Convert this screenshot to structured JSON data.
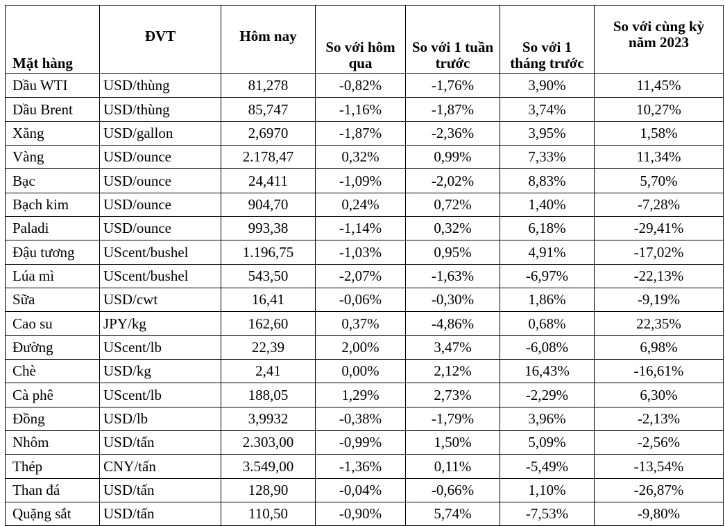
{
  "table": {
    "headers": {
      "item": "Mặt hàng",
      "unit": "ĐVT",
      "today": "Hôm nay",
      "vs_yesterday": "So với hôm qua",
      "vs_week": "So với 1 tuần trước",
      "vs_month": "So với 1 tháng trước",
      "vs_yoy": "So với cùng kỳ năm 2023"
    },
    "rows": [
      {
        "item": "Dầu WTI",
        "unit": "USD/thùng",
        "today": "81,278",
        "d1": "-0,82%",
        "w1": "-1,76%",
        "m1": "3,90%",
        "y1": "11,45%"
      },
      {
        "item": "Dầu Brent",
        "unit": "USD/thùng",
        "today": "85,747",
        "d1": "-1,16%",
        "w1": "-1,87%",
        "m1": "3,74%",
        "y1": "10,27%"
      },
      {
        "item": "Xăng",
        "unit": "USD/gallon",
        "today": "2,6970",
        "d1": "-1,87%",
        "w1": "-2,36%",
        "m1": "3,95%",
        "y1": "1,58%"
      },
      {
        "item": "Vàng",
        "unit": "USD/ounce",
        "today": "2.178,47",
        "d1": "0,32%",
        "w1": "0,99%",
        "m1": "7,33%",
        "y1": "11,34%"
      },
      {
        "item": "Bạc",
        "unit": "USD/ounce",
        "today": "24,411",
        "d1": "-1,09%",
        "w1": "-2,02%",
        "m1": "8,83%",
        "y1": "5,70%"
      },
      {
        "item": "Bạch kim",
        "unit": "USD/ounce",
        "today": "904,70",
        "d1": "0,24%",
        "w1": "0,72%",
        "m1": "1,40%",
        "y1": "-7,28%"
      },
      {
        "item": "Paladi",
        "unit": "USD/ounce",
        "today": "993,38",
        "d1": "-1,14%",
        "w1": "0,32%",
        "m1": "6,18%",
        "y1": "-29,41%"
      },
      {
        "item": "Đậu tương",
        "unit": "UScent/bushel",
        "today": "1.196,75",
        "d1": "-1,03%",
        "w1": "0,95%",
        "m1": "4,91%",
        "y1": "-17,02%"
      },
      {
        "item": "Lúa mì",
        "unit": "UScent/bushel",
        "today": "543,50",
        "d1": "-2,07%",
        "w1": "-1,63%",
        "m1": "-6,97%",
        "y1": "-22,13%"
      },
      {
        "item": "Sữa",
        "unit": "USD/cwt",
        "today": "16,41",
        "d1": "-0,06%",
        "w1": "-0,30%",
        "m1": "1,86%",
        "y1": "-9,19%"
      },
      {
        "item": "Cao su",
        "unit": "JPY/kg",
        "today": "162,60",
        "d1": "0,37%",
        "w1": "-4,86%",
        "m1": "0,68%",
        "y1": "22,35%"
      },
      {
        "item": "Đường",
        "unit": "UScent/lb",
        "today": "22,39",
        "d1": "2,00%",
        "w1": "3,47%",
        "m1": "-6,08%",
        "y1": "6,98%"
      },
      {
        "item": "Chè",
        "unit": "USD/kg",
        "today": "2,41",
        "d1": "0,00%",
        "w1": "2,12%",
        "m1": "16,43%",
        "y1": "-16,61%"
      },
      {
        "item": "Cà phê",
        "unit": "UScent/lb",
        "today": "188,05",
        "d1": "1,29%",
        "w1": "2,73%",
        "m1": "-2,29%",
        "y1": "6,30%"
      },
      {
        "item": "Đồng",
        "unit": "USD/lb",
        "today": "3,9932",
        "d1": "-0,38%",
        "w1": "-1,79%",
        "m1": "3,96%",
        "y1": "-2,13%"
      },
      {
        "item": "Nhôm",
        "unit": "USD/tấn",
        "today": "2.303,00",
        "d1": "-0,99%",
        "w1": "1,50%",
        "m1": "5,09%",
        "y1": "-2,56%"
      },
      {
        "item": "Thép",
        "unit": "CNY/tấn",
        "today": "3.549,00",
        "d1": "-1,36%",
        "w1": "0,11%",
        "m1": "-5,49%",
        "y1": "-13,54%"
      },
      {
        "item": "Than đá",
        "unit": "USD/tấn",
        "today": "128,90",
        "d1": "-0,04%",
        "w1": "-0,66%",
        "m1": "1,10%",
        "y1": "-26,87%"
      },
      {
        "item": "Quặng sắt",
        "unit": "USD/tấn",
        "today": "110,50",
        "d1": "-0,90%",
        "w1": "5,74%",
        "m1": "-7,53%",
        "y1": "-9,80%"
      }
    ]
  }
}
